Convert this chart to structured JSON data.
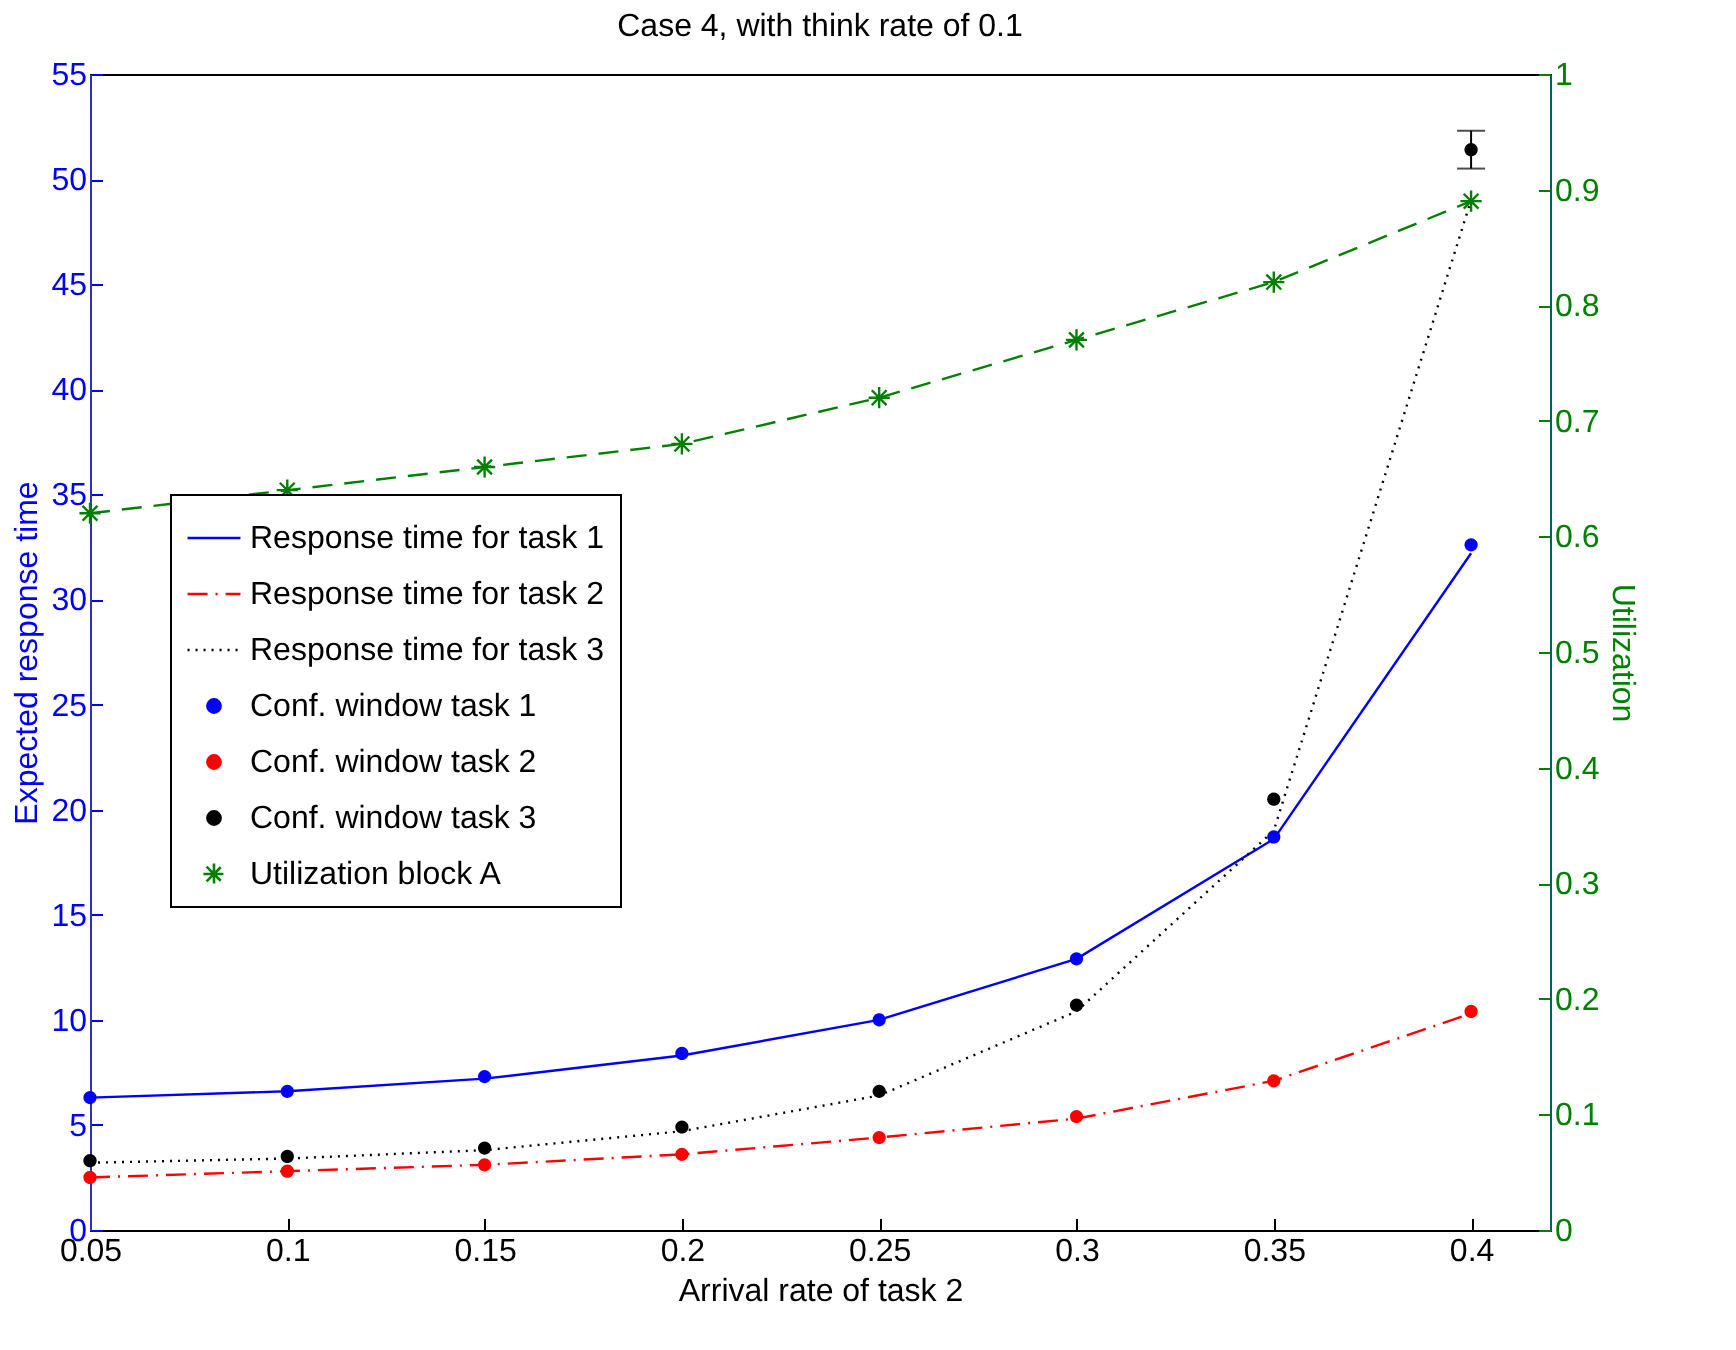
{
  "chart_data": {
    "type": "line",
    "title": "Case 4, with think rate of 0.1",
    "xlabel": "Arrival rate of task 2",
    "ylabel": "Expected response time",
    "y2label": "Utilization",
    "x": [
      0.05,
      0.1,
      0.15,
      0.2,
      0.25,
      0.3,
      0.35,
      0.4
    ],
    "xlim": [
      0.05,
      0.42
    ],
    "xticks": [
      0.05,
      0.1,
      0.15,
      0.2,
      0.25,
      0.3,
      0.35,
      0.4
    ],
    "ylim": [
      0,
      55
    ],
    "yticks": [
      0,
      5,
      10,
      15,
      20,
      25,
      30,
      35,
      40,
      45,
      50,
      55
    ],
    "y2lim": [
      0,
      1
    ],
    "y2ticks": [
      0,
      0.1,
      0.2,
      0.3,
      0.4,
      0.5,
      0.6,
      0.7,
      0.8,
      0.9,
      1
    ],
    "grid": false,
    "legend": "left",
    "series": [
      {
        "name": "Response time for task 1",
        "color": "#0000ff",
        "line_style": "solid",
        "marker": "none",
        "values": [
          6.3,
          6.6,
          7.2,
          8.3,
          10.0,
          12.9,
          18.6,
          32.2
        ]
      },
      {
        "name": "Response time for task 2",
        "color": "#ff0000",
        "line_style": "dashdot",
        "marker": "none",
        "values": [
          2.5,
          2.8,
          3.1,
          3.6,
          4.4,
          5.3,
          7.1,
          10.3
        ]
      },
      {
        "name": "Response time for task 3",
        "color": "#000000",
        "line_style": "dotted",
        "marker": "none",
        "values": [
          3.2,
          3.4,
          3.8,
          4.7,
          6.4,
          10.4,
          19.0,
          49.0
        ]
      },
      {
        "name": "Conf. window task 1",
        "type": "scatter",
        "color": "#0000ff",
        "marker": "circle",
        "values": [
          6.3,
          6.6,
          7.3,
          8.4,
          10.0,
          12.9,
          18.7,
          32.6
        ]
      },
      {
        "name": "Conf. window task 2",
        "type": "scatter",
        "color": "#ff0000",
        "marker": "circle",
        "values": [
          2.5,
          2.8,
          3.1,
          3.6,
          4.4,
          5.4,
          7.1,
          10.4
        ]
      },
      {
        "name": "Conf. window task 3",
        "type": "scatter",
        "color": "#000000",
        "marker": "circle",
        "values": [
          3.3,
          3.5,
          3.9,
          4.9,
          6.6,
          10.7,
          20.5,
          51.4
        ],
        "errors": [
          null,
          null,
          null,
          null,
          null,
          null,
          null,
          [
            50.5,
            52.3
          ]
        ]
      },
      {
        "name": "Utilization block A",
        "axis": "y2",
        "color": "#008000",
        "line_style": "dashed",
        "marker": "cross",
        "values": [
          0.62,
          0.64,
          0.66,
          0.68,
          0.72,
          0.77,
          0.82,
          0.89
        ]
      }
    ]
  }
}
